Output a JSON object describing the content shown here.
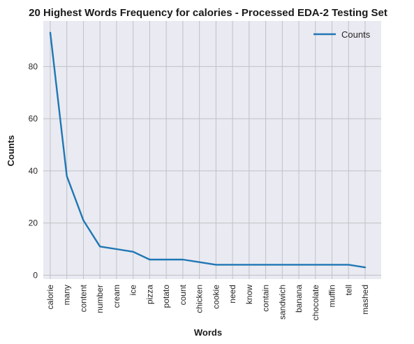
{
  "chart_data": {
    "type": "line",
    "title": "20 Highest Words Frequency for calories - Processed EDA-2 Testing Set",
    "xlabel": "Words",
    "ylabel": "Counts",
    "categories": [
      "calorie",
      "many",
      "content",
      "number",
      "cream",
      "ice",
      "pizza",
      "potato",
      "count",
      "chicken",
      "cookie",
      "need",
      "know",
      "contain",
      "sandwich",
      "banana",
      "chocolate",
      "muffin",
      "tell",
      "mashed"
    ],
    "series": [
      {
        "name": "Counts",
        "values": [
          93,
          38,
          21,
          11,
          10,
          9,
          6,
          6,
          6,
          5,
          4,
          4,
          4,
          4,
          4,
          4,
          4,
          4,
          4,
          3
        ]
      }
    ],
    "ylim": [
      -1.5,
      97.5
    ],
    "yticks": [
      0,
      20,
      40,
      60,
      80
    ],
    "grid": true,
    "legend_position": "top-right",
    "colors": {
      "line": "#1f77b4",
      "background": "#eaeaf2",
      "grid": "#c0c0c6"
    }
  }
}
